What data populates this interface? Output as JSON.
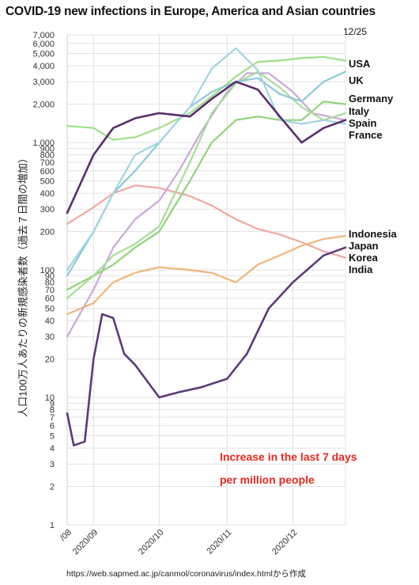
{
  "title": "COVID-19 new infections in Europe, America and Asian countries",
  "date_label": "12/25",
  "source_text": "https://web.sapmed.ac.jp/canmol/coronavirus/index.htmlから作成",
  "note": [
    "Increase in the last 7 days",
    "per million people"
  ],
  "colors": {
    "USA": "#9fe08a",
    "UK": "#8ec9da",
    "Germany": "#8fd47a",
    "Italy": "#a8dd98",
    "Spain": "#5a2d6e",
    "France": "#a3d3e2",
    "Indonesia": "#f0a7a0",
    "Japan": "#f2b57b",
    "Korea": "#5b3a7a",
    "India": "#c9a9d6",
    "grid": "#e1e1e1",
    "note": "#e8281e"
  },
  "chart_data": {
    "type": "line",
    "title": "COVID-19 new infections in Europe, America and Asian countries",
    "ylabel": "人口100万人あたりの新規感染者数（過去７日間の増加）",
    "xlabel": "",
    "yscale": "log",
    "ylim": [
      1,
      7000
    ],
    "yticks": [
      1,
      2,
      3,
      4,
      5,
      6,
      7,
      8,
      9,
      10,
      20,
      30,
      40,
      50,
      60,
      70,
      80,
      90,
      100,
      200,
      300,
      400,
      500,
      600,
      700,
      800,
      900,
      1000,
      2000,
      3000,
      4000,
      5000,
      6000,
      7000
    ],
    "ytick_labels": [
      "1",
      "2",
      "3",
      "4",
      "5",
      "6",
      "7",
      "8",
      "9",
      "10",
      "20",
      "30",
      "40",
      "50",
      "60",
      "70",
      "80",
      "90",
      "100",
      "200",
      "300",
      "400",
      "500",
      "600",
      "700",
      "800",
      "900",
      "1,000",
      "2,000",
      "3,000",
      "4,000",
      "5,000",
      "6,000",
      "7,000"
    ],
    "xlim": [
      "2020-08-20",
      "2020-12-25"
    ],
    "xticks": [
      {
        "date": "2020-08-20",
        "label": "/08"
      },
      {
        "date": "2020-09-01",
        "label": "2020/09"
      },
      {
        "date": "2020-10-01",
        "label": "2020/10"
      },
      {
        "date": "2020-11-01",
        "label": "2020/11"
      },
      {
        "date": "2020-12-01",
        "label": "2020/12"
      }
    ],
    "grid": true,
    "legend_position": "right",
    "series": [
      {
        "name": "USA",
        "color": "#9fe08a",
        "points": [
          [
            "2020-08-20",
            1350
          ],
          [
            "2020-09-01",
            1300
          ],
          [
            "2020-09-10",
            1050
          ],
          [
            "2020-09-20",
            1100
          ],
          [
            "2020-10-01",
            1300
          ],
          [
            "2020-10-15",
            1700
          ],
          [
            "2020-10-25",
            2300
          ],
          [
            "2020-11-05",
            3300
          ],
          [
            "2020-11-15",
            4300
          ],
          [
            "2020-11-25",
            4400
          ],
          [
            "2020-12-05",
            4600
          ],
          [
            "2020-12-15",
            4700
          ],
          [
            "2020-12-25",
            4400
          ]
        ]
      },
      {
        "name": "UK",
        "color": "#8ec9da",
        "points": [
          [
            "2020-08-20",
            90
          ],
          [
            "2020-09-01",
            200
          ],
          [
            "2020-09-10",
            400
          ],
          [
            "2020-09-20",
            600
          ],
          [
            "2020-10-01",
            1000
          ],
          [
            "2020-10-15",
            1900
          ],
          [
            "2020-10-25",
            2500
          ],
          [
            "2020-11-05",
            3000
          ],
          [
            "2020-11-15",
            3200
          ],
          [
            "2020-11-25",
            2400
          ],
          [
            "2020-12-05",
            2100
          ],
          [
            "2020-12-15",
            3000
          ],
          [
            "2020-12-25",
            3600
          ]
        ]
      },
      {
        "name": "Germany",
        "color": "#8fd47a",
        "points": [
          [
            "2020-08-20",
            70
          ],
          [
            "2020-09-01",
            90
          ],
          [
            "2020-09-10",
            110
          ],
          [
            "2020-09-20",
            150
          ],
          [
            "2020-10-01",
            200
          ],
          [
            "2020-10-15",
            500
          ],
          [
            "2020-10-25",
            1000
          ],
          [
            "2020-11-05",
            1500
          ],
          [
            "2020-11-15",
            1600
          ],
          [
            "2020-11-25",
            1500
          ],
          [
            "2020-12-05",
            1500
          ],
          [
            "2020-12-15",
            2100
          ],
          [
            "2020-12-25",
            2000
          ]
        ]
      },
      {
        "name": "Italy",
        "color": "#a8dd98",
        "points": [
          [
            "2020-08-20",
            60
          ],
          [
            "2020-09-01",
            90
          ],
          [
            "2020-09-10",
            130
          ],
          [
            "2020-09-20",
            160
          ],
          [
            "2020-10-01",
            220
          ],
          [
            "2020-10-15",
            700
          ],
          [
            "2020-10-25",
            1700
          ],
          [
            "2020-11-05",
            2900
          ],
          [
            "2020-11-15",
            3600
          ],
          [
            "2020-11-25",
            2700
          ],
          [
            "2020-12-05",
            1900
          ],
          [
            "2020-12-15",
            1500
          ],
          [
            "2020-12-25",
            1700
          ]
        ]
      },
      {
        "name": "Spain",
        "color": "#5a2d6e",
        "points": [
          [
            "2020-08-20",
            280
          ],
          [
            "2020-09-01",
            800
          ],
          [
            "2020-09-10",
            1300
          ],
          [
            "2020-09-20",
            1550
          ],
          [
            "2020-10-01",
            1700
          ],
          [
            "2020-10-15",
            1600
          ],
          [
            "2020-10-25",
            2200
          ],
          [
            "2020-11-05",
            3000
          ],
          [
            "2020-11-15",
            2600
          ],
          [
            "2020-11-25",
            1600
          ],
          [
            "2020-12-05",
            1000
          ],
          [
            "2020-12-15",
            1300
          ],
          [
            "2020-12-25",
            1500
          ]
        ]
      },
      {
        "name": "France",
        "color": "#a3d3e2",
        "points": [
          [
            "2020-08-20",
            100
          ],
          [
            "2020-09-01",
            200
          ],
          [
            "2020-09-10",
            400
          ],
          [
            "2020-09-20",
            800
          ],
          [
            "2020-10-01",
            1000
          ],
          [
            "2020-10-15",
            1900
          ],
          [
            "2020-10-25",
            3800
          ],
          [
            "2020-11-05",
            5500
          ],
          [
            "2020-11-15",
            3700
          ],
          [
            "2020-11-25",
            1500
          ],
          [
            "2020-12-05",
            1400
          ],
          [
            "2020-12-15",
            1500
          ],
          [
            "2020-12-25",
            1400
          ]
        ]
      },
      {
        "name": "Indonesia",
        "color": "#f0a7a0",
        "points": [
          [
            "2020-08-20",
            230
          ],
          [
            "2020-09-01",
            310
          ],
          [
            "2020-09-10",
            400
          ],
          [
            "2020-09-20",
            460
          ],
          [
            "2020-10-01",
            440
          ],
          [
            "2020-10-15",
            380
          ],
          [
            "2020-10-25",
            320
          ],
          [
            "2020-11-05",
            250
          ],
          [
            "2020-11-15",
            210
          ],
          [
            "2020-11-25",
            190
          ],
          [
            "2020-12-05",
            165
          ],
          [
            "2020-12-15",
            140
          ],
          [
            "2020-12-25",
            125
          ]
        ]
      },
      {
        "name": "Japan",
        "color": "#f2b57b",
        "points": [
          [
            "2020-08-20",
            45
          ],
          [
            "2020-09-01",
            55
          ],
          [
            "2020-09-10",
            80
          ],
          [
            "2020-09-20",
            95
          ],
          [
            "2020-10-01",
            105
          ],
          [
            "2020-10-15",
            100
          ],
          [
            "2020-10-25",
            95
          ],
          [
            "2020-11-05",
            80
          ],
          [
            "2020-11-15",
            110
          ],
          [
            "2020-11-25",
            130
          ],
          [
            "2020-12-05",
            155
          ],
          [
            "2020-12-15",
            175
          ],
          [
            "2020-12-25",
            185
          ]
        ]
      },
      {
        "name": "Korea",
        "color": "#5b3a7a",
        "points": [
          [
            "2020-08-20",
            7.5
          ],
          [
            "2020-08-23",
            4.2
          ],
          [
            "2020-08-28",
            4.5
          ],
          [
            "2020-09-01",
            20
          ],
          [
            "2020-09-05",
            45
          ],
          [
            "2020-09-10",
            42
          ],
          [
            "2020-09-15",
            22
          ],
          [
            "2020-09-20",
            18
          ],
          [
            "2020-10-01",
            10
          ],
          [
            "2020-10-10",
            11
          ],
          [
            "2020-10-20",
            12
          ],
          [
            "2020-11-01",
            14
          ],
          [
            "2020-11-10",
            22
          ],
          [
            "2020-11-20",
            50
          ],
          [
            "2020-12-01",
            80
          ],
          [
            "2020-12-15",
            130
          ],
          [
            "2020-12-25",
            150
          ]
        ]
      },
      {
        "name": "India",
        "color": "#c9a9d6",
        "points": [
          [
            "2020-08-20",
            30
          ],
          [
            "2020-09-01",
            70
          ],
          [
            "2020-09-10",
            150
          ],
          [
            "2020-09-20",
            250
          ],
          [
            "2020-10-01",
            350
          ],
          [
            "2020-10-10",
            600
          ],
          [
            "2020-10-20",
            1200
          ],
          [
            "2020-11-01",
            2500
          ],
          [
            "2020-11-10",
            3500
          ],
          [
            "2020-11-20",
            3500
          ],
          [
            "2020-12-01",
            2500
          ],
          [
            "2020-12-10",
            1700
          ],
          [
            "2020-12-25",
            1500
          ]
        ]
      }
    ]
  }
}
